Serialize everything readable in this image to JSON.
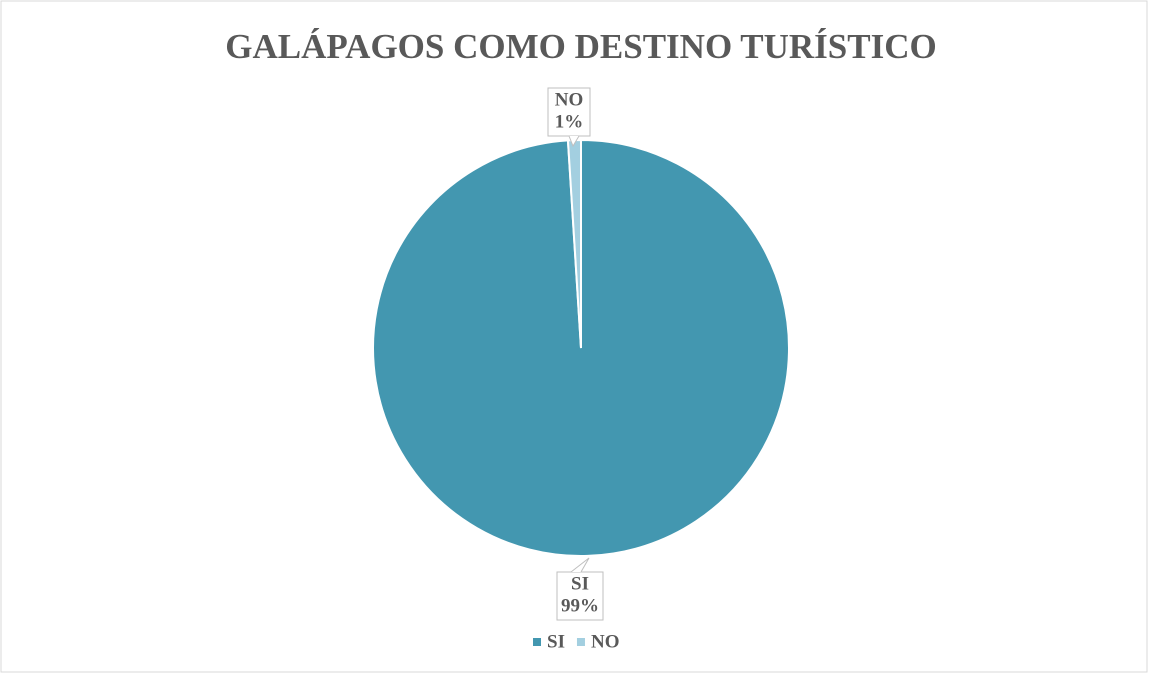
{
  "chart_data": {
    "type": "pie",
    "title": "GALÁPAGOS  COMO DESTINO TURÍSTICO",
    "categories": [
      "SI",
      "NO"
    ],
    "values": [
      99,
      1
    ],
    "value_labels": [
      "99%",
      "1%"
    ],
    "colors": [
      "#4397b0",
      "#a3cfe0"
    ],
    "legend": "bottom"
  }
}
